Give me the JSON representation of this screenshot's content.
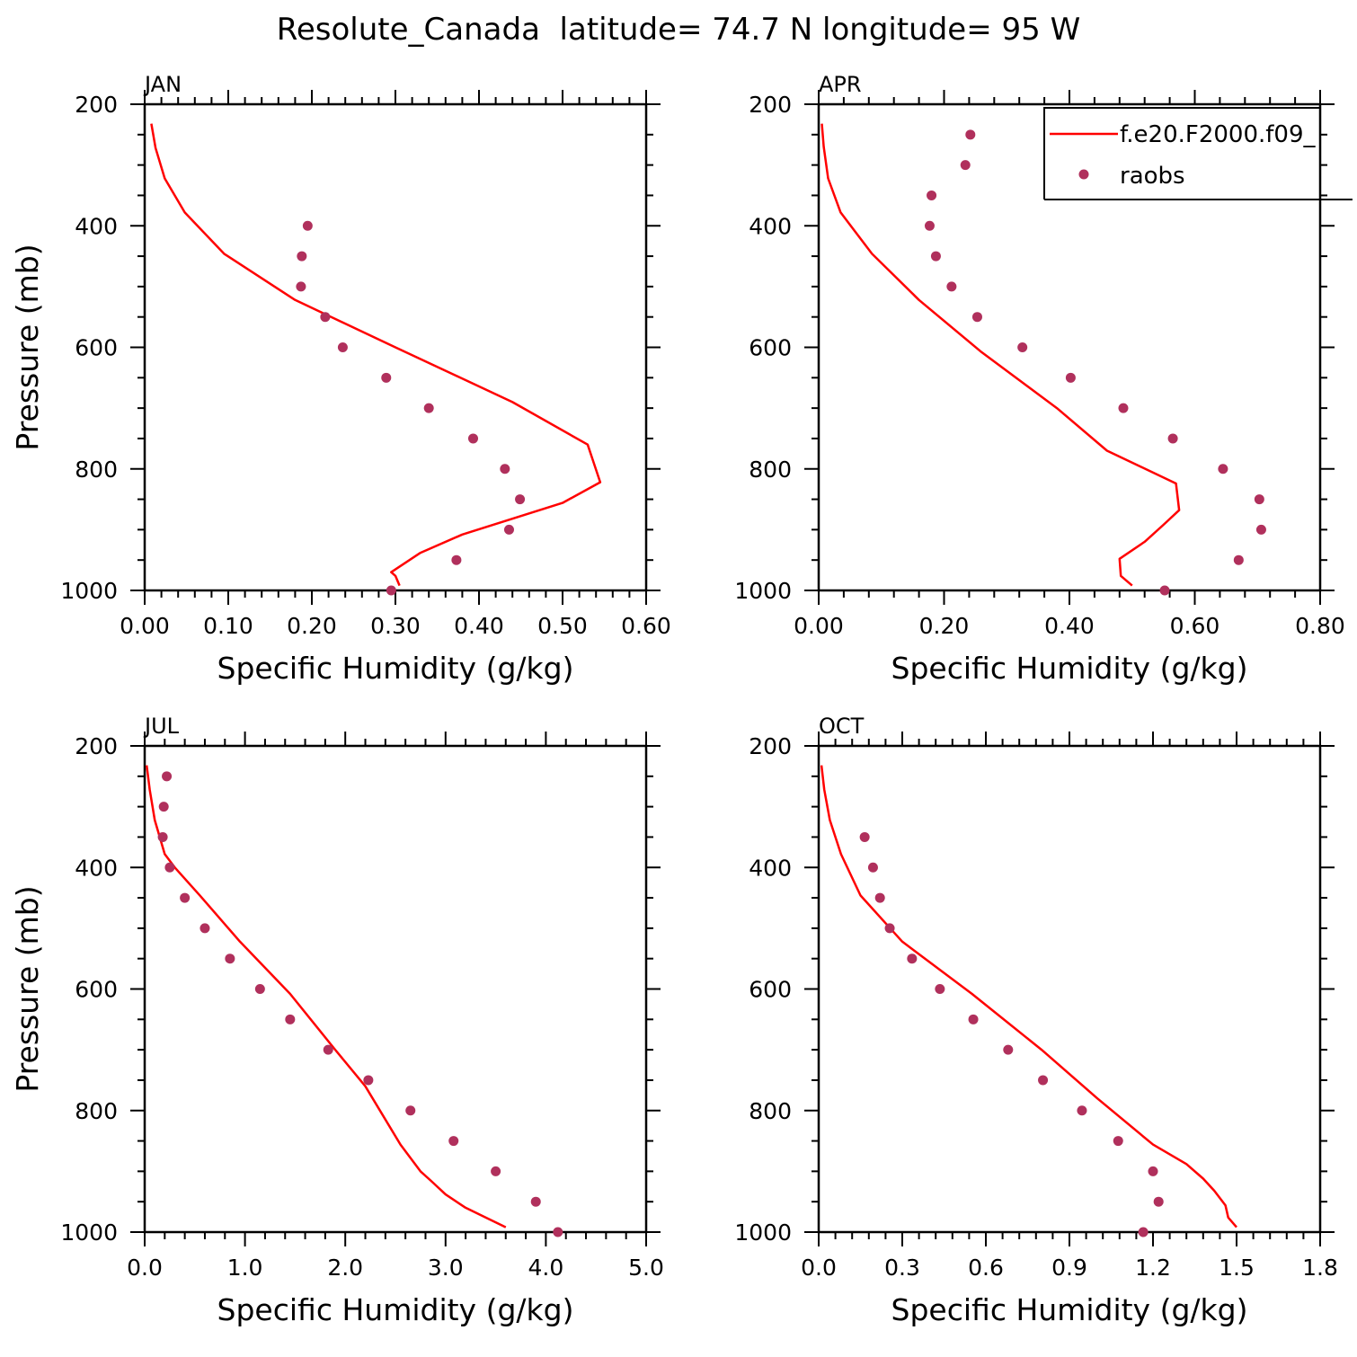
{
  "title": "Resolute_Canada  latitude= 74.7 N longitude= 95 W",
  "legend": {
    "model_label": "f.e20.F2000.f09_",
    "obs_label": "raobs"
  },
  "colors": {
    "model": "#ff0000",
    "obs": "#b0305c",
    "axis": "#000000"
  },
  "chart_data": [
    {
      "type": "line",
      "panel": "JAN",
      "xlabel": "Specific Humidity (g/kg)",
      "ylabel": "Pressure (mb)",
      "xlim": [
        0,
        0.6
      ],
      "ylim": [
        200,
        1000
      ],
      "y_inverted": true,
      "xticks": [
        0,
        0.1,
        0.2,
        0.3,
        0.4,
        0.5,
        0.6
      ],
      "xtick_labels": [
        "0.00",
        "0.10",
        "0.20",
        "0.30",
        "0.40",
        "0.50",
        "0.60"
      ],
      "yticks": [
        200,
        400,
        600,
        800,
        1000
      ],
      "ytick_labels": [
        "200",
        "400",
        "600",
        "800",
        "1000"
      ],
      "show_legend": false,
      "series": [
        {
          "name": "f.e20.F2000.f09_",
          "kind": "line",
          "x": [
            0.008,
            0.013,
            0.024,
            0.048,
            0.095,
            0.18,
            0.3,
            0.44,
            0.53,
            0.545,
            0.5,
            0.38,
            0.33,
            0.295,
            0.3,
            0.305
          ],
          "y": [
            232,
            272,
            322,
            378,
            446,
            522,
            600,
            690,
            760,
            822,
            856,
            908,
            938,
            970,
            976,
            992
          ]
        },
        {
          "name": "raobs",
          "kind": "scatter",
          "x": [
            0.195,
            0.188,
            0.187,
            0.216,
            0.237,
            0.289,
            0.34,
            0.393,
            0.431,
            0.449,
            0.436,
            0.373,
            0.295
          ],
          "y": [
            400,
            450,
            500,
            550,
            600,
            650,
            700,
            750,
            800,
            850,
            900,
            950,
            1000
          ]
        }
      ]
    },
    {
      "type": "line",
      "panel": "APR",
      "xlabel": "Specific Humidity (g/kg)",
      "ylabel": "",
      "xlim": [
        0,
        0.8
      ],
      "ylim": [
        200,
        1000
      ],
      "y_inverted": true,
      "xticks": [
        0,
        0.2,
        0.4,
        0.6,
        0.8
      ],
      "xtick_labels": [
        "0.00",
        "0.20",
        "0.40",
        "0.60",
        "0.80"
      ],
      "yticks": [
        200,
        400,
        600,
        800,
        1000
      ],
      "ytick_labels": [
        "200",
        "400",
        "600",
        "800",
        "1000"
      ],
      "show_legend": true,
      "series": [
        {
          "name": "f.e20.F2000.f09_",
          "kind": "line",
          "x": [
            0.005,
            0.008,
            0.015,
            0.035,
            0.085,
            0.16,
            0.26,
            0.38,
            0.46,
            0.57,
            0.575,
            0.55,
            0.52,
            0.48,
            0.482,
            0.5
          ],
          "y": [
            232,
            270,
            322,
            378,
            446,
            522,
            608,
            700,
            770,
            824,
            868,
            892,
            920,
            948,
            976,
            992
          ]
        },
        {
          "name": "raobs",
          "kind": "scatter",
          "x": [
            0.242,
            0.234,
            0.18,
            0.177,
            0.187,
            0.212,
            0.253,
            0.325,
            0.402,
            0.486,
            0.565,
            0.645,
            0.703,
            0.706,
            0.67,
            0.552
          ],
          "y": [
            250,
            300,
            350,
            400,
            450,
            500,
            550,
            600,
            650,
            700,
            750,
            800,
            850,
            900,
            950,
            1000
          ]
        }
      ]
    },
    {
      "type": "line",
      "panel": "JUL",
      "xlabel": "Specific Humidity (g/kg)",
      "ylabel": "Pressure (mb)",
      "xlim": [
        0,
        5
      ],
      "ylim": [
        200,
        1000
      ],
      "y_inverted": true,
      "xticks": [
        0,
        1,
        2,
        3,
        4,
        5
      ],
      "xtick_labels": [
        "0.0",
        "1.0",
        "2.0",
        "3.0",
        "4.0",
        "5.0"
      ],
      "yticks": [
        200,
        400,
        600,
        800,
        1000
      ],
      "ytick_labels": [
        "200",
        "400",
        "600",
        "800",
        "1000"
      ],
      "show_legend": false,
      "series": [
        {
          "name": "f.e20.F2000.f09_",
          "kind": "line",
          "x": [
            0.02,
            0.05,
            0.1,
            0.2,
            0.3,
            0.55,
            0.95,
            1.45,
            1.9,
            2.2,
            2.55,
            2.75,
            2.85,
            3.0,
            3.2,
            3.4,
            3.6
          ],
          "y": [
            232,
            272,
            322,
            378,
            400,
            446,
            522,
            608,
            700,
            760,
            856,
            900,
            915,
            938,
            960,
            976,
            992
          ]
        },
        {
          "name": "raobs",
          "kind": "scatter",
          "x": [
            0.22,
            0.19,
            0.18,
            0.25,
            0.4,
            0.6,
            0.85,
            1.15,
            1.45,
            1.83,
            2.23,
            2.65,
            3.08,
            3.5,
            3.9,
            4.12
          ],
          "y": [
            250,
            300,
            350,
            400,
            450,
            500,
            550,
            600,
            650,
            700,
            750,
            800,
            850,
            900,
            950,
            1000
          ]
        }
      ]
    },
    {
      "type": "line",
      "panel": "OCT",
      "xlabel": "Specific Humidity (g/kg)",
      "ylabel": "",
      "xlim": [
        0,
        1.8
      ],
      "ylim": [
        200,
        1000
      ],
      "y_inverted": true,
      "xticks": [
        0,
        0.3,
        0.6,
        0.9,
        1.2,
        1.5,
        1.8
      ],
      "xtick_labels": [
        "0.0",
        "0.3",
        "0.6",
        "0.9",
        "1.2",
        "1.5",
        "1.8"
      ],
      "yticks": [
        200,
        400,
        600,
        800,
        1000
      ],
      "ytick_labels": [
        "200",
        "400",
        "600",
        "800",
        "1000"
      ],
      "show_legend": false,
      "series": [
        {
          "name": "f.e20.F2000.f09_",
          "kind": "line",
          "x": [
            0.01,
            0.02,
            0.04,
            0.08,
            0.15,
            0.3,
            0.55,
            0.8,
            1.0,
            1.2,
            1.32,
            1.38,
            1.42,
            1.46,
            1.47,
            1.5
          ],
          "y": [
            232,
            272,
            322,
            378,
            446,
            522,
            608,
            700,
            780,
            856,
            888,
            912,
            932,
            956,
            976,
            992
          ]
        },
        {
          "name": "raobs",
          "kind": "scatter",
          "x": [
            0.165,
            0.195,
            0.22,
            0.255,
            0.335,
            0.435,
            0.555,
            0.68,
            0.805,
            0.945,
            1.075,
            1.2,
            1.22,
            1.165
          ],
          "y": [
            350,
            400,
            450,
            500,
            550,
            600,
            650,
            700,
            750,
            800,
            850,
            900,
            950,
            1000
          ]
        }
      ]
    }
  ]
}
